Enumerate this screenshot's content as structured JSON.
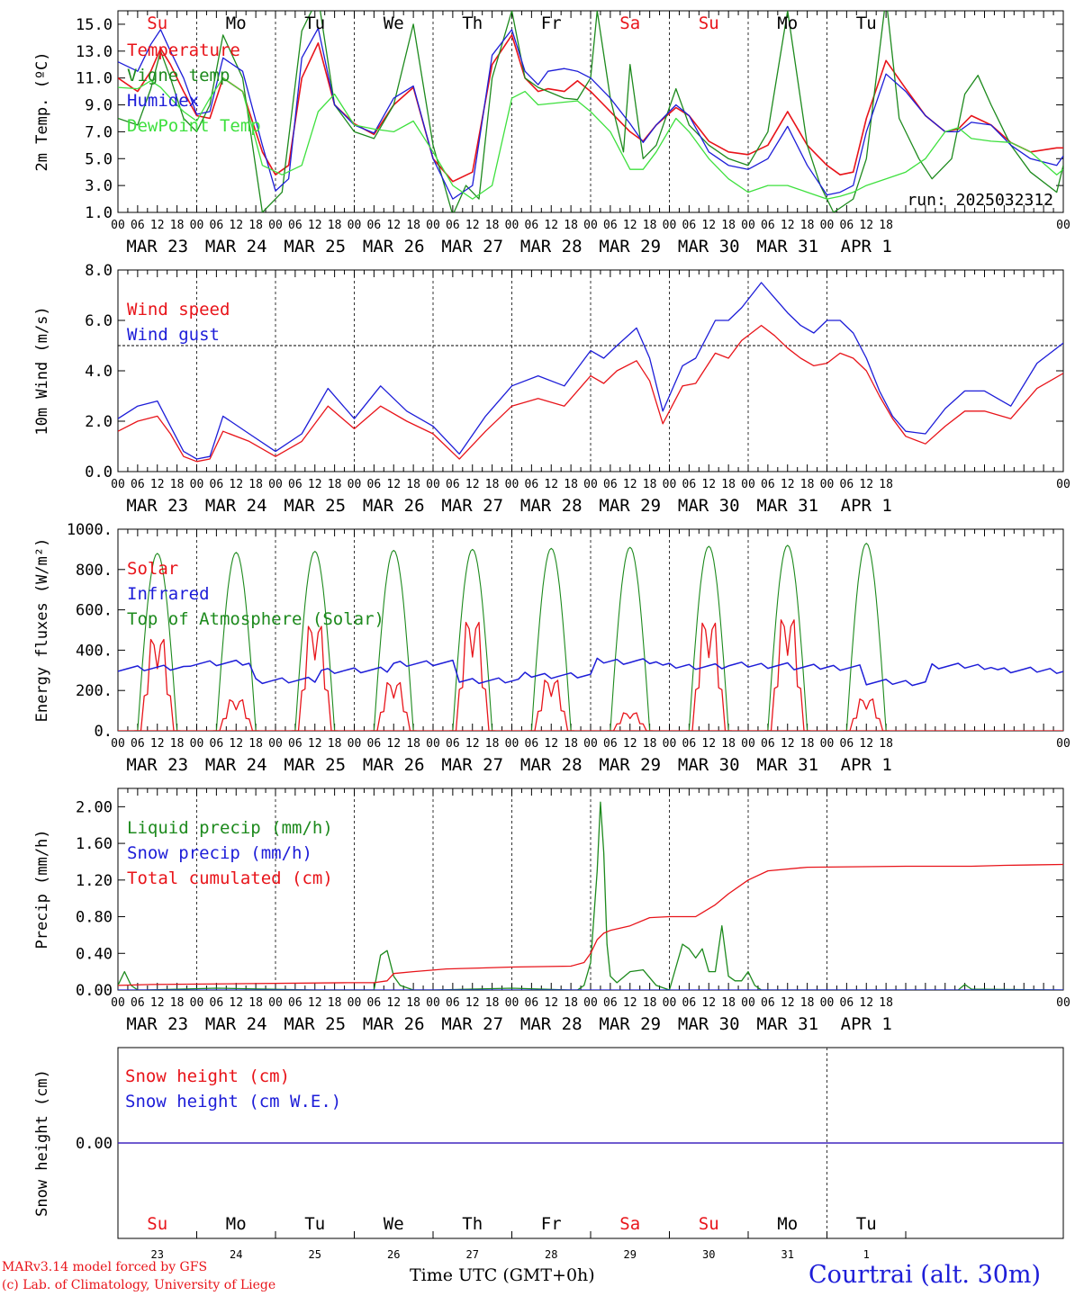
{
  "colors": {
    "red": "#e8141a",
    "blue": "#1d1dd8",
    "green": "#1d8a1d",
    "lightgreen": "#3ee03e",
    "axis": "#000000"
  },
  "day_ticks": [
    "MAR 23",
    "MAR 24",
    "MAR 25",
    "MAR 26",
    "MAR 27",
    "MAR 28",
    "MAR 29",
    "MAR 30",
    "MAR 31",
    "APR  1"
  ],
  "hour_ticks": [
    "00",
    "06",
    "12",
    "18"
  ],
  "hour_tick_end": "00",
  "weekdays": [
    {
      "label": "Su",
      "color": "#e8141a"
    },
    {
      "label": "Mo",
      "color": "#000000"
    },
    {
      "label": "Tu",
      "color": "#000000"
    },
    {
      "label": "We",
      "color": "#000000"
    },
    {
      "label": "Th",
      "color": "#000000"
    },
    {
      "label": "Fr",
      "color": "#000000"
    },
    {
      "label": "Sa",
      "color": "#e8141a"
    },
    {
      "label": "Su",
      "color": "#e8141a"
    },
    {
      "label": "Mo",
      "color": "#000000"
    },
    {
      "label": "Tu",
      "color": "#000000"
    }
  ],
  "day_numbers": [
    "23",
    "24",
    "25",
    "26",
    "27",
    "28",
    "29",
    "30",
    "31",
    "1"
  ],
  "run_label": "run: 2025032312",
  "footer": {
    "model": "MARv3.14 model forced by GFS",
    "lab": "(c) Lab. of Climatology, University of Liege",
    "xlabel": "Time UTC (GMT+0h)",
    "location": "Courtrai (alt. 30m)"
  },
  "chart_data": [
    {
      "type": "line",
      "ylabel": "2m Temp. (ºC)",
      "ylim": [
        1,
        16
      ],
      "yticks": [
        "1.0",
        "3.0",
        "5.0",
        "7.0",
        "9.0",
        "11.0",
        "13.0",
        "15.0"
      ],
      "yticks_values": [
        1,
        3,
        5,
        7,
        9,
        11,
        13,
        15
      ],
      "x_unit": "hours since 2025-03-23 00 UTC",
      "series": [
        {
          "name": "Temperature",
          "color": "#e8141a",
          "x": [
            0,
            6,
            10,
            13,
            16,
            20,
            24,
            28,
            32,
            38,
            44,
            48,
            52,
            56,
            61,
            66,
            72,
            78,
            84,
            90,
            96,
            102,
            108,
            114,
            120,
            124,
            128,
            131,
            136,
            140,
            144,
            150,
            156,
            160,
            164,
            170,
            174,
            180,
            186,
            192,
            198,
            204,
            210,
            216,
            220,
            224,
            228,
            234,
            240,
            246,
            252,
            256,
            260,
            266,
            272,
            278,
            286,
            288
          ],
          "y": [
            11,
            10,
            11.5,
            13.2,
            12,
            10,
            8.2,
            8,
            11,
            10,
            5.5,
            3.8,
            4.5,
            11,
            13.6,
            9,
            7.6,
            6.8,
            9,
            10.3,
            5,
            3.3,
            4,
            12,
            14.2,
            11,
            10,
            10.2,
            10,
            10.8,
            10,
            8.5,
            7,
            6.3,
            7.5,
            8.8,
            8.2,
            6.3,
            5.5,
            5.3,
            6,
            8.5,
            6,
            4.5,
            3.8,
            4,
            8,
            12.3,
            10.2,
            8.2,
            7,
            7.2,
            8.2,
            7.5,
            6.2,
            5.5,
            5.8,
            5.8
          ]
        },
        {
          "name": "Vigne temp",
          "color": "#1d8a1d",
          "x": [
            0,
            6,
            10,
            13,
            16,
            20,
            24,
            28,
            32,
            38,
            44,
            50,
            56,
            61,
            66,
            72,
            78,
            84,
            90,
            96,
            102,
            106,
            110,
            114,
            120,
            124,
            128,
            131,
            136,
            140,
            144,
            146,
            150,
            154,
            156,
            160,
            164,
            170,
            174,
            180,
            186,
            192,
            198,
            204,
            210,
            214,
            218,
            224,
            228,
            234,
            238,
            244,
            248,
            254,
            258,
            262,
            266,
            272,
            278,
            286,
            288
          ],
          "y": [
            8,
            7.5,
            10.2,
            13,
            11,
            8,
            7,
            9,
            14.2,
            11,
            1,
            2.5,
            14.5,
            17,
            9,
            7,
            6.5,
            9,
            15,
            6,
            0.8,
            3,
            2,
            11,
            16,
            11,
            10.3,
            10,
            9.5,
            9.4,
            11,
            16,
            9.5,
            5.5,
            12,
            5,
            6,
            10.2,
            7.5,
            6,
            5,
            4.5,
            7,
            16,
            6,
            3,
            1,
            2,
            5,
            17,
            8,
            5,
            3.5,
            5,
            9.8,
            11.2,
            9,
            6,
            4,
            2.5,
            4.5
          ]
        },
        {
          "name": "Humidex",
          "color": "#1d1dd8",
          "x": [
            0,
            6,
            10,
            13,
            16,
            20,
            24,
            28,
            32,
            38,
            44,
            48,
            52,
            56,
            61,
            66,
            72,
            78,
            84,
            90,
            96,
            102,
            108,
            114,
            120,
            124,
            128,
            131,
            136,
            140,
            144,
            150,
            156,
            160,
            164,
            170,
            174,
            180,
            186,
            192,
            198,
            204,
            210,
            216,
            220,
            224,
            228,
            234,
            240,
            246,
            252,
            256,
            260,
            266,
            272,
            278,
            286,
            288
          ],
          "y": [
            12.2,
            11.5,
            13.5,
            14.6,
            13,
            11,
            8.3,
            8.5,
            12.5,
            11.5,
            6,
            2.6,
            3.5,
            12.5,
            14.7,
            9,
            7.5,
            6.9,
            9.5,
            10.4,
            5,
            2,
            3,
            12.7,
            14.6,
            11.5,
            10.5,
            11.5,
            11.7,
            11.5,
            11,
            9.5,
            7.6,
            6.2,
            7.5,
            9,
            8.2,
            5.5,
            4.5,
            4.2,
            5,
            7.4,
            4.5,
            2.3,
            2.5,
            3,
            7,
            11.3,
            10,
            8.2,
            7,
            7,
            7.7,
            7.5,
            6,
            5,
            4.5,
            5.2
          ]
        },
        {
          "name": "DewPoint Temp",
          "color": "#3ee03e",
          "x": [
            0,
            6,
            10,
            13,
            16,
            20,
            24,
            28,
            32,
            38,
            44,
            50,
            56,
            61,
            66,
            72,
            78,
            84,
            90,
            96,
            102,
            108,
            114,
            120,
            124,
            128,
            136,
            140,
            144,
            150,
            156,
            160,
            164,
            170,
            174,
            180,
            186,
            192,
            198,
            204,
            210,
            216,
            220,
            224,
            228,
            234,
            240,
            246,
            252,
            256,
            260,
            266,
            272,
            278,
            286,
            288
          ],
          "y": [
            10.3,
            10.2,
            10.8,
            10.3,
            9.5,
            8.5,
            7.8,
            9.5,
            11,
            10,
            4.5,
            3.8,
            4.5,
            8.5,
            9.8,
            7.5,
            7.2,
            7,
            7.8,
            5.5,
            3,
            2,
            3,
            9.5,
            10,
            9,
            9.2,
            9.3,
            8.5,
            7,
            4.2,
            4.2,
            5.5,
            8,
            7,
            5,
            3.5,
            2.5,
            3,
            3,
            2.5,
            2,
            2.2,
            2.5,
            3,
            3.5,
            4,
            5,
            7,
            7.3,
            6.5,
            6.3,
            6.2,
            5.5,
            3.8,
            4.2
          ]
        }
      ]
    },
    {
      "type": "line",
      "ylabel": "10m Wind (m/s)",
      "ylim": [
        0,
        8
      ],
      "yticks": [
        "0.0",
        "2.0",
        "4.0",
        "6.0",
        "8.0"
      ],
      "yticks_values": [
        0,
        2,
        4,
        6,
        8
      ],
      "reference_line": 5,
      "series": [
        {
          "name": "Wind speed",
          "color": "#e8141a",
          "x": [
            0,
            6,
            12,
            16,
            20,
            24,
            28,
            32,
            40,
            48,
            56,
            64,
            72,
            80,
            88,
            96,
            104,
            112,
            120,
            128,
            136,
            144,
            148,
            152,
            158,
            162,
            166,
            172,
            176,
            182,
            186,
            190,
            196,
            200,
            204,
            208,
            212,
            216,
            220,
            224,
            228,
            232,
            236,
            240,
            246,
            252,
            258,
            264,
            272,
            280,
            288
          ],
          "y": [
            1.6,
            2,
            2.2,
            1.5,
            0.6,
            0.4,
            0.5,
            1.6,
            1.2,
            0.6,
            1.2,
            2.6,
            1.7,
            2.6,
            2,
            1.5,
            0.5,
            1.6,
            2.6,
            2.9,
            2.6,
            3.8,
            3.5,
            4,
            4.4,
            3.6,
            1.9,
            3.4,
            3.5,
            4.7,
            4.5,
            5.2,
            5.8,
            5.4,
            4.9,
            4.5,
            4.2,
            4.3,
            4.7,
            4.5,
            4,
            3,
            2.1,
            1.4,
            1.1,
            1.8,
            2.4,
            2.4,
            2.1,
            3.3,
            3.9
          ]
        },
        {
          "name": "Wind gust",
          "color": "#1d1dd8",
          "x": [
            0,
            6,
            12,
            16,
            20,
            24,
            28,
            32,
            40,
            48,
            56,
            64,
            72,
            80,
            88,
            96,
            104,
            112,
            120,
            128,
            136,
            144,
            148,
            152,
            158,
            162,
            166,
            172,
            176,
            182,
            186,
            190,
            196,
            200,
            204,
            208,
            212,
            216,
            220,
            224,
            228,
            232,
            236,
            240,
            246,
            252,
            258,
            264,
            272,
            280,
            288
          ],
          "y": [
            2.1,
            2.6,
            2.8,
            1.8,
            0.8,
            0.5,
            0.6,
            2.2,
            1.5,
            0.8,
            1.5,
            3.3,
            2.1,
            3.4,
            2.4,
            1.8,
            0.7,
            2.2,
            3.4,
            3.8,
            3.4,
            4.8,
            4.5,
            5,
            5.7,
            4.5,
            2.4,
            4.2,
            4.5,
            6,
            6,
            6.5,
            7.5,
            6.9,
            6.3,
            5.8,
            5.5,
            6,
            6,
            5.5,
            4.5,
            3.2,
            2.2,
            1.6,
            1.5,
            2.5,
            3.2,
            3.2,
            2.6,
            4.3,
            5.1
          ]
        }
      ]
    },
    {
      "type": "line",
      "ylabel": "Energy fluxes (W/m²)",
      "ylim": [
        0,
        1000
      ],
      "yticks": [
        "0.",
        "200.",
        "400.",
        "600.",
        "800.",
        "1000."
      ],
      "yticks_values": [
        0,
        200,
        400,
        600,
        800,
        1000
      ],
      "toa_peaks": [
        880,
        885,
        890,
        895,
        900,
        905,
        910,
        915,
        920,
        930
      ],
      "solar_peaks": [
        560,
        190,
        640,
        295,
        665,
        310,
        110,
        660,
        680,
        195
      ],
      "infrared_levels": [
        310,
        335,
        250,
        300,
        335,
        250,
        275,
        345,
        320,
        325,
        315,
        240,
        320,
        300
      ],
      "series": [
        {
          "name": "Solar",
          "color": "#e8141a"
        },
        {
          "name": "Infrared",
          "color": "#1d1dd8"
        },
        {
          "name": "Top of Atmosphere (Solar)",
          "color": "#1d8a1d"
        }
      ]
    },
    {
      "type": "line",
      "ylabel": "Precip (mm/h)",
      "ylim": [
        0,
        2.2
      ],
      "yticks": [
        "0.00",
        "0.40",
        "0.80",
        "1.20",
        "1.60",
        "2.00"
      ],
      "yticks_values": [
        0,
        0.4,
        0.8,
        1.2,
        1.6,
        2.0
      ],
      "series": [
        {
          "name": "Liquid precip (mm/h)",
          "color": "#1d8a1d",
          "x": [
            0,
            2,
            4,
            6,
            8,
            30,
            60,
            78,
            80,
            82,
            84,
            86,
            90,
            96,
            120,
            138,
            140,
            142,
            144,
            146,
            147,
            148,
            149,
            150,
            152,
            156,
            160,
            164,
            168,
            170,
            172,
            174,
            176,
            178,
            180,
            182,
            184,
            186,
            188,
            190,
            192,
            194,
            196,
            200,
            240,
            256,
            258,
            260,
            288
          ],
          "y": [
            0.05,
            0.2,
            0.05,
            0,
            0,
            0.02,
            0,
            0,
            0.38,
            0.43,
            0.15,
            0.05,
            0,
            0,
            0.02,
            0,
            0,
            0.05,
            0.3,
            1.3,
            2.05,
            1.5,
            0.5,
            0.15,
            0.08,
            0.2,
            0.22,
            0.05,
            0,
            0.25,
            0.5,
            0.45,
            0.35,
            0.45,
            0.2,
            0.2,
            0.7,
            0.15,
            0.1,
            0.1,
            0.2,
            0.05,
            0,
            0,
            0,
            0,
            0.06,
            0.01,
            0
          ]
        },
        {
          "name": "Snow precip (mm/h)",
          "color": "#1d1dd8",
          "x": [
            0,
            288
          ],
          "y": [
            0,
            0
          ]
        },
        {
          "name": "Total cumulated (cm)",
          "color": "#e8141a",
          "x": [
            0,
            10,
            40,
            70,
            78,
            82,
            84,
            90,
            100,
            110,
            120,
            138,
            142,
            144,
            146,
            148,
            150,
            156,
            162,
            168,
            176,
            182,
            186,
            192,
            198,
            210,
            240,
            260,
            270,
            288
          ],
          "y": [
            0.05,
            0.06,
            0.07,
            0.08,
            0.08,
            0.1,
            0.18,
            0.2,
            0.23,
            0.24,
            0.25,
            0.26,
            0.3,
            0.4,
            0.55,
            0.62,
            0.65,
            0.7,
            0.79,
            0.8,
            0.8,
            0.93,
            1.05,
            1.2,
            1.3,
            1.34,
            1.35,
            1.35,
            1.36,
            1.37
          ]
        }
      ]
    },
    {
      "type": "line",
      "ylabel": "Snow height (cm)",
      "ylim": [
        -1,
        1
      ],
      "yticks": [
        "0.00"
      ],
      "yticks_values": [
        0
      ],
      "series": [
        {
          "name": "Snow height (cm)",
          "color": "#e8141a",
          "x": [
            0,
            288
          ],
          "y": [
            0,
            0
          ]
        },
        {
          "name": "Snow height (cm W.E.)",
          "color": "#1d1dd8",
          "x": [
            0,
            288
          ],
          "y": [
            0,
            0
          ]
        }
      ]
    }
  ]
}
